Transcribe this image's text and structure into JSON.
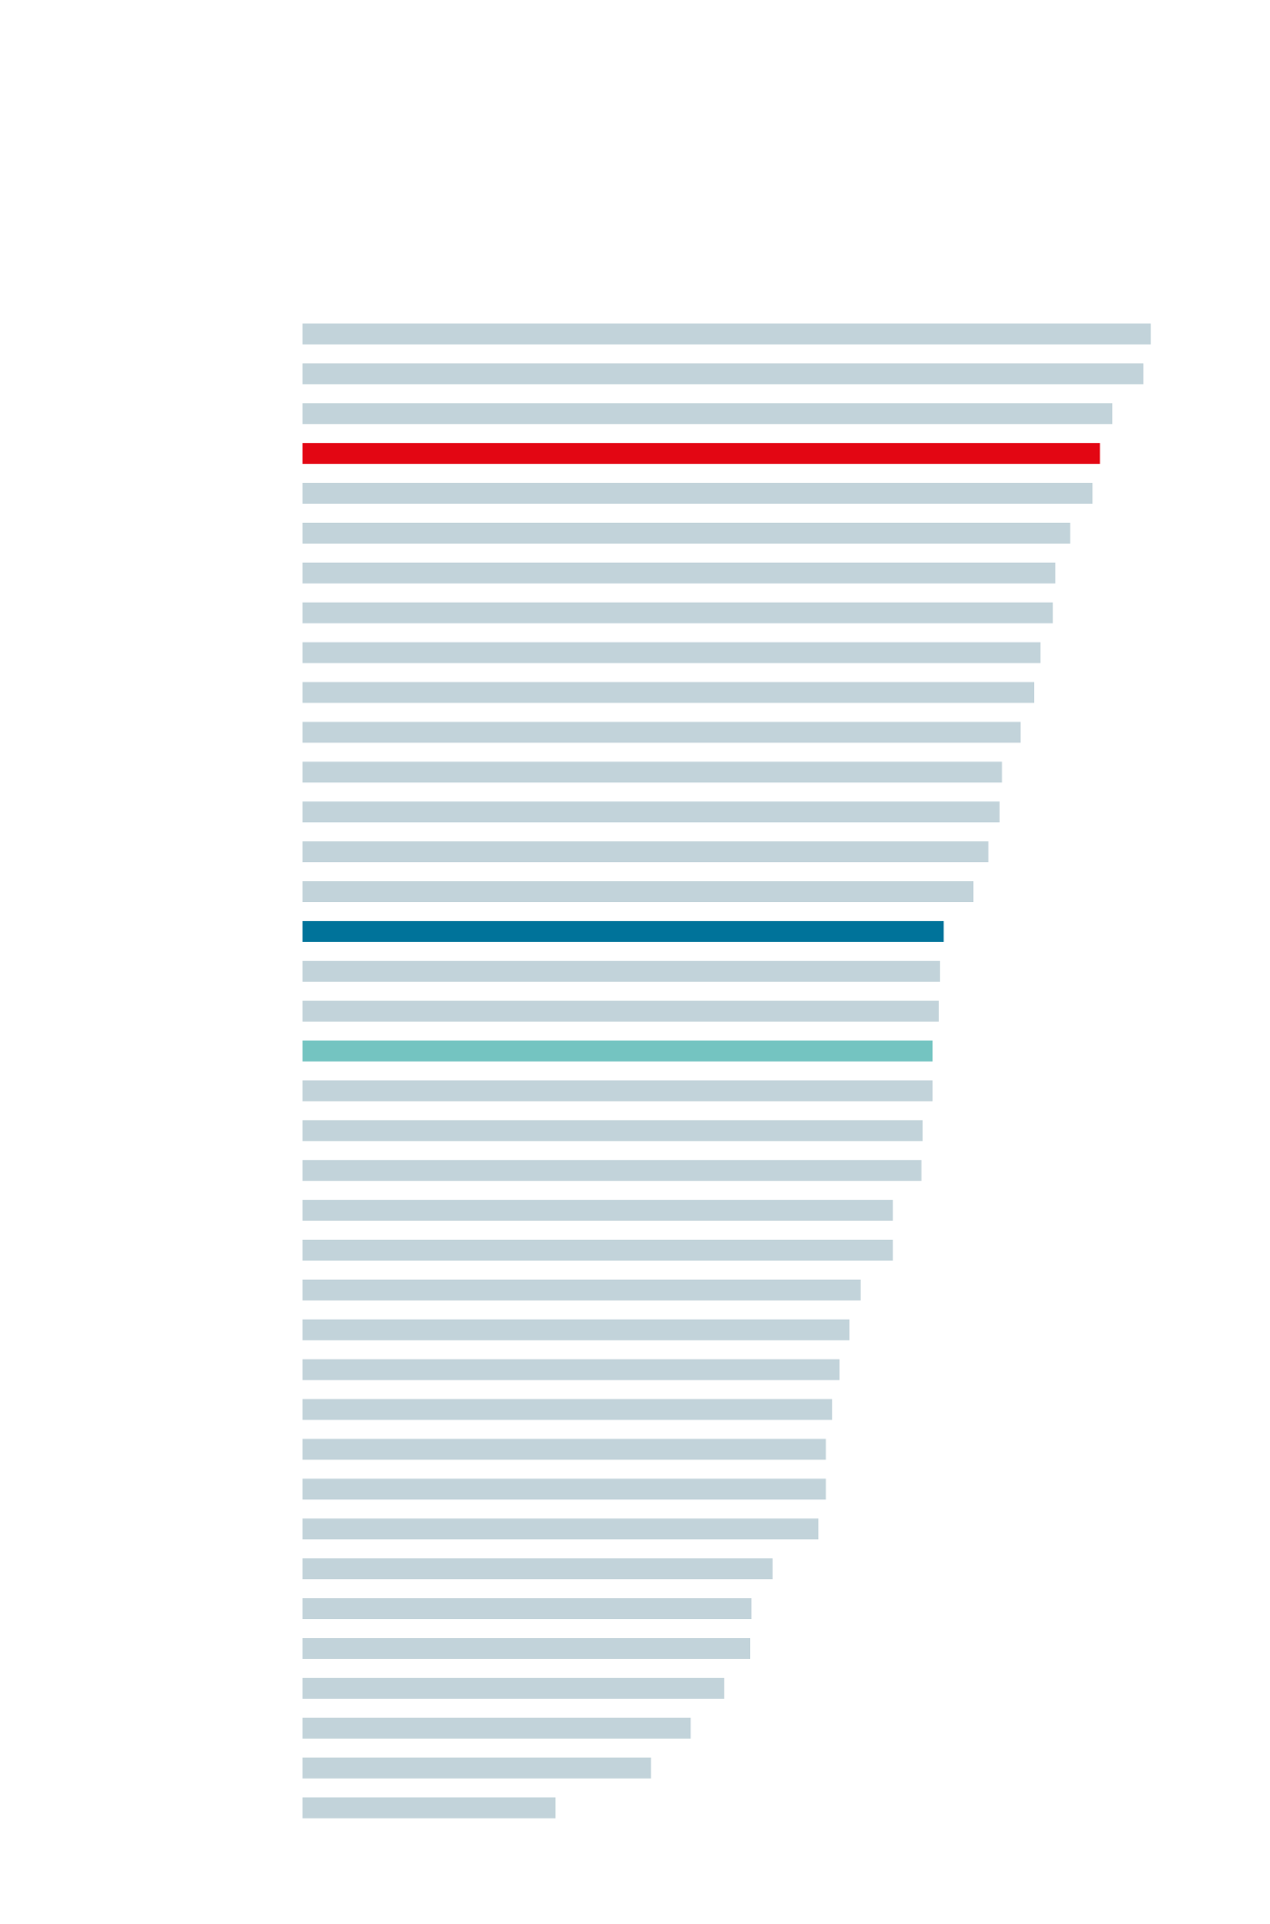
{
  "chart_data": {
    "type": "bar",
    "orientation": "horizontal",
    "values": [
      684,
      678,
      653,
      643,
      637,
      619,
      607,
      605,
      595,
      590,
      579,
      564,
      562,
      553,
      541,
      517,
      514,
      513,
      508,
      508,
      500,
      499,
      476,
      476,
      450,
      441,
      433,
      427,
      422,
      422,
      416,
      379,
      362,
      361,
      340,
      313,
      281,
      204
    ],
    "colors": [
      "#c2d3da",
      "#c2d3da",
      "#c2d3da",
      "#e30613",
      "#c2d3da",
      "#c2d3da",
      "#c2d3da",
      "#c2d3da",
      "#c2d3da",
      "#c2d3da",
      "#c2d3da",
      "#c2d3da",
      "#c2d3da",
      "#c2d3da",
      "#c2d3da",
      "#00739a",
      "#c2d3da",
      "#c2d3da",
      "#74c4c1",
      "#c2d3da",
      "#c2d3da",
      "#c2d3da",
      "#c2d3da",
      "#c2d3da",
      "#c2d3da",
      "#c2d3da",
      "#c2d3da",
      "#c2d3da",
      "#c2d3da",
      "#c2d3da",
      "#c2d3da",
      "#c2d3da",
      "#c2d3da",
      "#c2d3da",
      "#c2d3da",
      "#c2d3da",
      "#c2d3da",
      "#c2d3da"
    ],
    "xlim": [
      0,
      700
    ]
  }
}
